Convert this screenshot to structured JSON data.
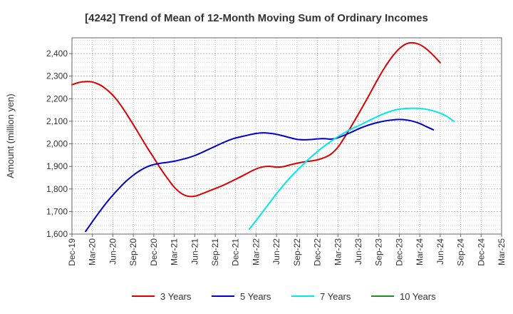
{
  "chart_data": {
    "type": "line",
    "title": "[4242]  Trend of Mean of 12-Month Moving Sum of Ordinary Incomes",
    "xlabel": "",
    "ylabel": "Amount (million yen)",
    "ylim": [
      1600,
      2470
    ],
    "yticks": [
      1600,
      1700,
      1800,
      1900,
      2000,
      2100,
      2200,
      2300,
      2400
    ],
    "ytick_labels": [
      "1,600",
      "1,700",
      "1,800",
      "1,900",
      "2,000",
      "2,100",
      "2,200",
      "2,300",
      "2,400"
    ],
    "xticks": [
      "Dec-19",
      "Mar-20",
      "Jun-20",
      "Sep-20",
      "Dec-20",
      "Mar-21",
      "Jun-21",
      "Sep-21",
      "Dec-21",
      "Mar-22",
      "Jun-22",
      "Sep-22",
      "Dec-22",
      "Mar-23",
      "Jun-23",
      "Sep-23",
      "Dec-23",
      "Mar-24",
      "Jun-24",
      "Sep-24",
      "Dec-24",
      "Mar-25"
    ],
    "grid": true,
    "legend_position": "bottom",
    "series": [
      {
        "name": "3 Years",
        "color": "#dd0000",
        "start_index": 0,
        "values": [
          2262,
          2272,
          2276,
          2274,
          2263,
          2243,
          2215,
          2178,
          2133,
          2085,
          2035,
          1985,
          1938,
          1890,
          1847,
          1808,
          1781,
          1768,
          1768,
          1778,
          1790,
          1802,
          1814,
          1828,
          1843,
          1858,
          1874,
          1889,
          1898,
          1900,
          1897,
          1899,
          1907,
          1914,
          1920,
          1924,
          1929,
          1939,
          1955,
          1985,
          2030,
          2080,
          2132,
          2185,
          2240,
          2295,
          2345,
          2388,
          2422,
          2443,
          2448,
          2440,
          2420,
          2392,
          2360
        ]
      },
      {
        "name": "5 Years",
        "color": "#0000cc",
        "start_index": 2,
        "values": [
          1612,
          1655,
          1697,
          1737,
          1773,
          1806,
          1836,
          1861,
          1882,
          1898,
          1908,
          1914,
          1918,
          1923,
          1930,
          1938,
          1948,
          1961,
          1975,
          1989,
          2003,
          2016,
          2026,
          2033,
          2040,
          2046,
          2049,
          2047,
          2042,
          2035,
          2027,
          2020,
          2018,
          2019,
          2022,
          2023,
          2021,
          2027,
          2039,
          2052,
          2066,
          2078,
          2088,
          2096,
          2102,
          2106,
          2108,
          2106,
          2100,
          2090,
          2076,
          2062
        ]
      },
      {
        "name": "7 Years",
        "color": "#00e8e8",
        "start_index": 26,
        "values": [
          1622,
          1660,
          1700,
          1740,
          1779,
          1816,
          1851,
          1882,
          1912,
          1940,
          1966,
          1990,
          2012,
          2032,
          2050,
          2066,
          2080,
          2095,
          2110,
          2124,
          2137,
          2147,
          2154,
          2157,
          2158,
          2157,
          2153,
          2146,
          2136,
          2121,
          2100
        ]
      },
      {
        "name": "10 Years",
        "color": "#228b22",
        "start_index": 0,
        "values": []
      }
    ]
  }
}
